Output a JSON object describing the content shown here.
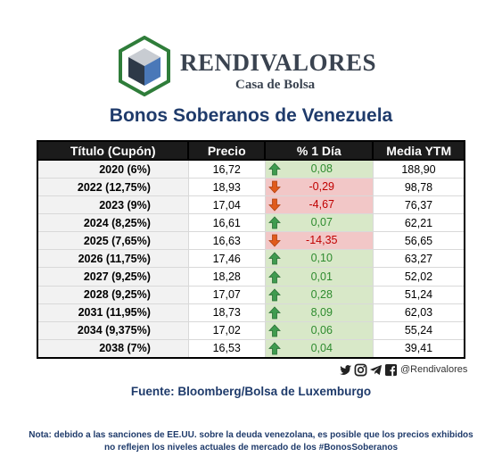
{
  "logo": {
    "name": "RENDIVALORES",
    "subtitle": "Casa de Bolsa"
  },
  "title": "Bonos Soberanos de Venezuela",
  "table": {
    "headers": [
      "Título (Cupón)",
      "Precio",
      "% 1 Día",
      "Media YTM"
    ],
    "rows": [
      {
        "name": "2020 (6%)",
        "price": "16,72",
        "pct": "0,08",
        "dir": "up",
        "ytm": "188,90"
      },
      {
        "name": "2022 (12,75%)",
        "price": "18,93",
        "pct": "-0,29",
        "dir": "down",
        "ytm": "98,78"
      },
      {
        "name": "2023 (9%)",
        "price": "17,04",
        "pct": "-4,67",
        "dir": "down",
        "ytm": "76,37"
      },
      {
        "name": "2024 (8,25%)",
        "price": "16,61",
        "pct": "0,07",
        "dir": "up",
        "ytm": "62,21"
      },
      {
        "name": "2025 (7,65%)",
        "price": "16,63",
        "pct": "-14,35",
        "dir": "down",
        "ytm": "56,65"
      },
      {
        "name": "2026 (11,75%)",
        "price": "17,46",
        "pct": "0,10",
        "dir": "up",
        "ytm": "63,27"
      },
      {
        "name": "2027 (9,25%)",
        "price": "18,28",
        "pct": "0,01",
        "dir": "up",
        "ytm": "52,02"
      },
      {
        "name": "2028 (9,25%)",
        "price": "17,07",
        "pct": "0,28",
        "dir": "up",
        "ytm": "51,24"
      },
      {
        "name": "2031 (11,95%)",
        "price": "18,73",
        "pct": "8,09",
        "dir": "up",
        "ytm": "62,03"
      },
      {
        "name": "2034 (9,375%)",
        "price": "17,02",
        "pct": "0,06",
        "dir": "up",
        "ytm": "55,24"
      },
      {
        "name": "2038 (7%)",
        "price": "16,53",
        "pct": "0,04",
        "dir": "up",
        "ytm": "39,41"
      }
    ]
  },
  "social": {
    "icons": [
      "twitter-icon",
      "instagram-icon",
      "telegram-icon",
      "facebook-icon"
    ],
    "handle": "@Rendivalores"
  },
  "source": "Fuente: Bloomberg/Bolsa de Luxemburgo",
  "note": "Nota: debido a las sanciones de EE.UU. sobre la deuda venezolana, es posible que los precios exhibidos no reflejen los niveles actuales de mercado de los #BonosSoberanos",
  "colors": {
    "up_bg": "#d8e8c8",
    "down_bg": "#f2c7c7",
    "up_text": "#2e8b2e",
    "down_text": "#c00000",
    "title": "#1f3b6b"
  }
}
